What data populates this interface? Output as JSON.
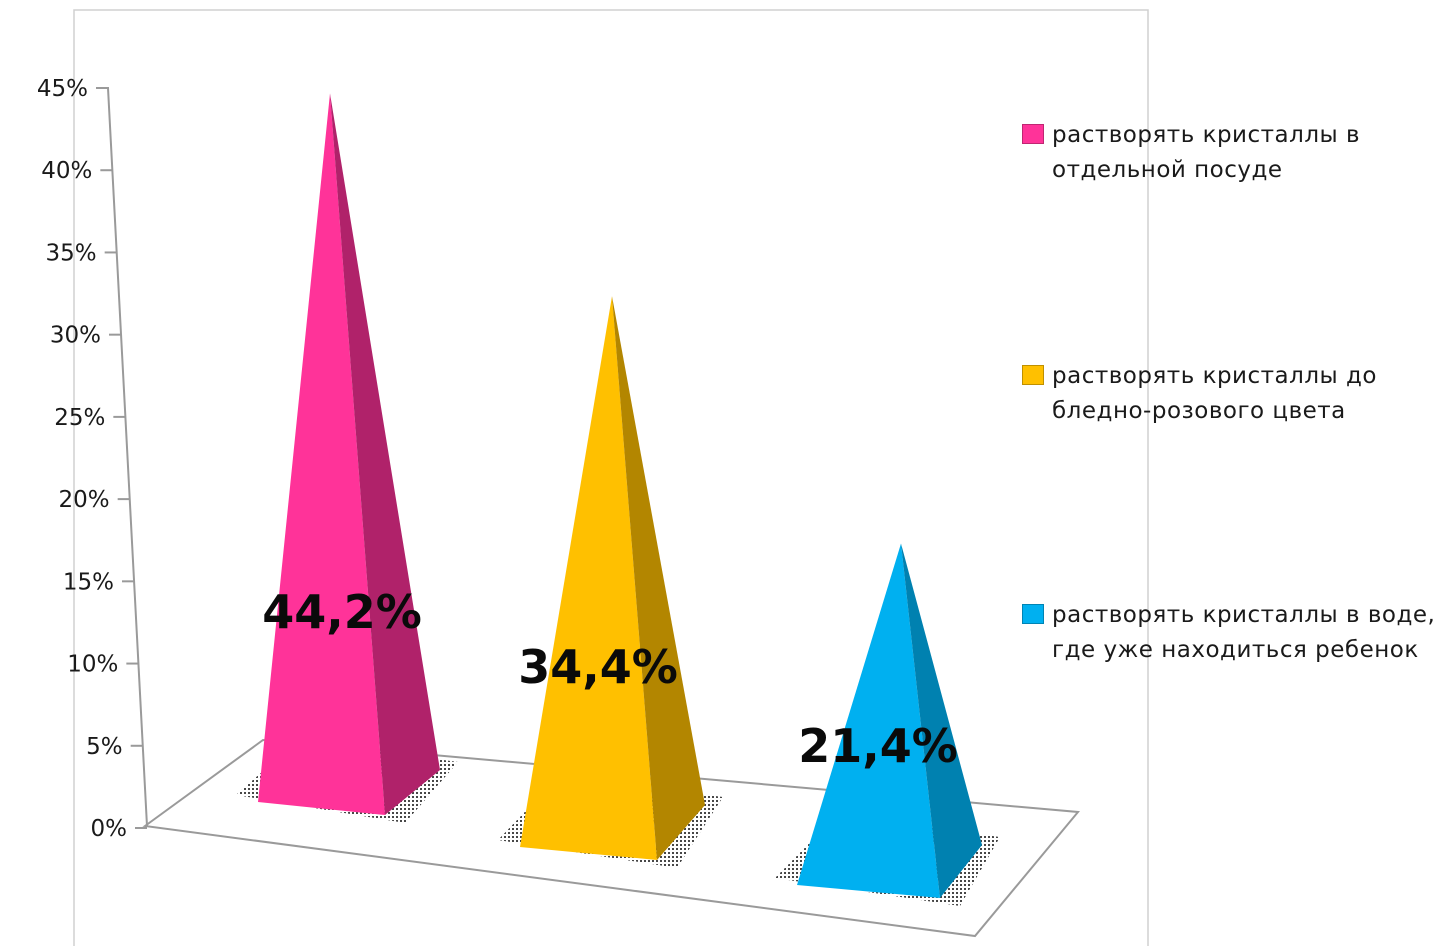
{
  "chart_data": {
    "type": "bar",
    "shape": "pyramid-3d",
    "categories": [
      "растворять кристаллы в отдельной посуде",
      "растворять кристаллы до бледно-розового цвета",
      "растворять кристаллы в воде, где уже находиться ребенок"
    ],
    "values": [
      44.2,
      34.4,
      21.4
    ],
    "data_labels": [
      "44,2%",
      "34,4%",
      "21,4%"
    ],
    "colors": [
      "#ff3399",
      "#ffc000",
      "#00b0f0"
    ],
    "dark_colors": [
      "#b0226a",
      "#b38600",
      "#0081b0"
    ],
    "y_ticks": [
      "0%",
      "5%",
      "10%",
      "15%",
      "20%",
      "25%",
      "30%",
      "35%",
      "40%",
      "45%"
    ],
    "ylim": [
      0,
      45
    ],
    "grid": false,
    "legend_position": "right",
    "legend": [
      {
        "label": "растворять кристаллы в отдельной посуде",
        "color": "#ff3399"
      },
      {
        "label": " растворять кристаллы до бледно-розового цвета",
        "color": "#ffc000"
      },
      {
        "label": " растворять кристаллы в воде, где уже находиться ребенок",
        "color": "#00b0f0"
      }
    ]
  }
}
